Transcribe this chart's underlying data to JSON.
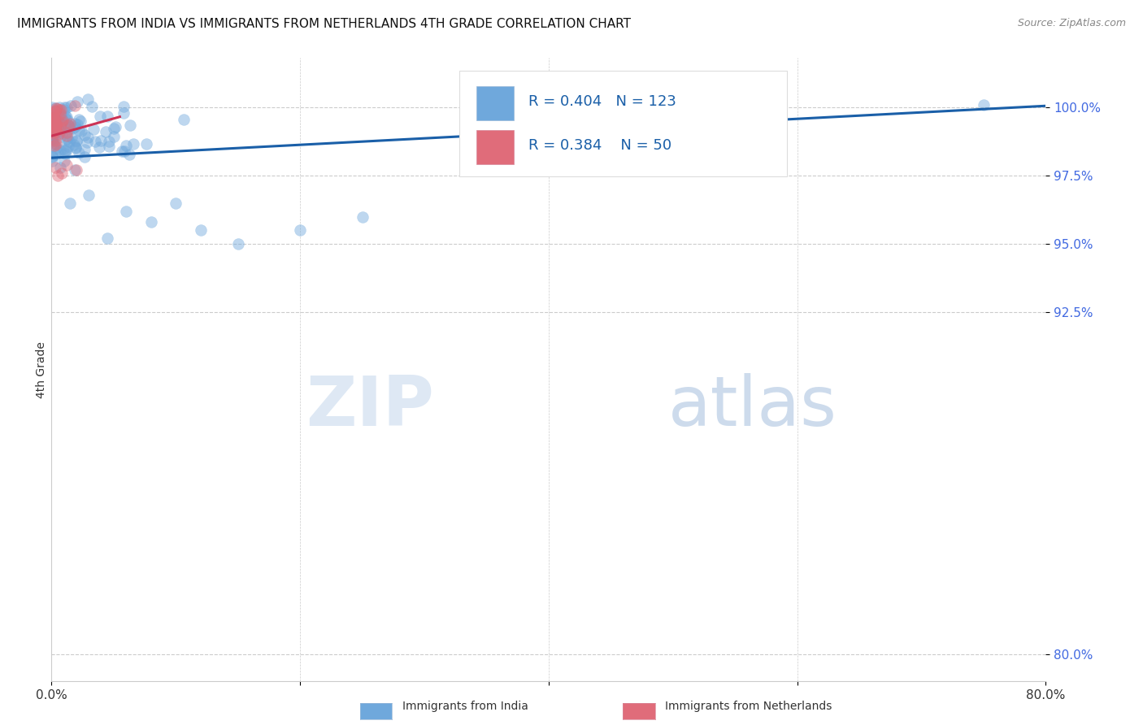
{
  "title": "IMMIGRANTS FROM INDIA VS IMMIGRANTS FROM NETHERLANDS 4TH GRADE CORRELATION CHART",
  "source": "Source: ZipAtlas.com",
  "ylabel": "4th Grade",
  "ytick_values": [
    80.0,
    92.5,
    95.0,
    97.5,
    100.0
  ],
  "xmin": 0.0,
  "xmax": 80.0,
  "ymin": 79.0,
  "ymax": 101.8,
  "legend_r_india": "R = 0.404",
  "legend_n_india": "N = 123",
  "legend_r_neth": "R = 0.384",
  "legend_n_neth": "N = 50",
  "color_india": "#6fa8dc",
  "color_neth": "#e06c7a",
  "color_india_line": "#1a5fa8",
  "color_neth_line": "#cc3355",
  "watermark_zip": "ZIP",
  "watermark_atlas": "atlas",
  "india_seed": 12,
  "neth_seed": 7
}
